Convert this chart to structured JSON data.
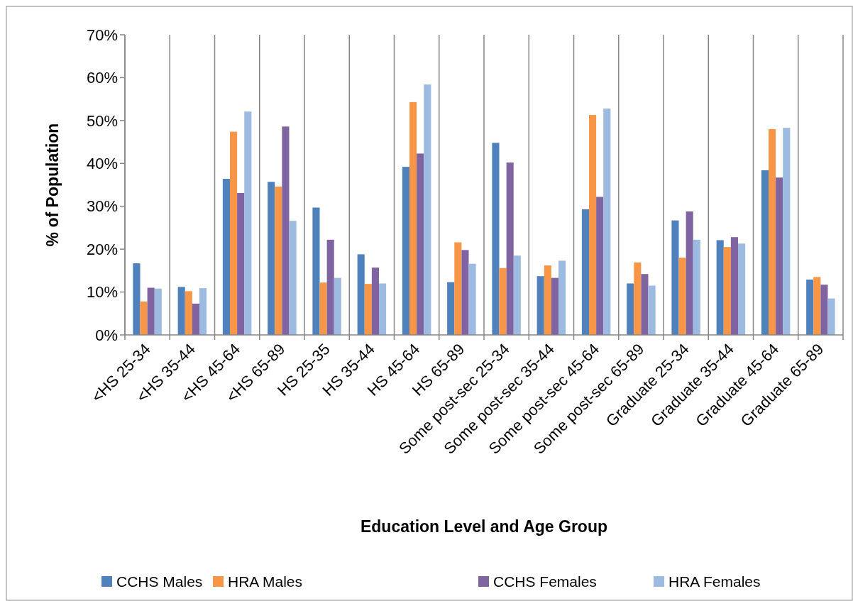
{
  "chart_data": {
    "type": "bar",
    "xlabel": "Education Level and Age Group",
    "ylabel": "% of Population",
    "categories": [
      "<HS 25-34",
      "<HS 35-44",
      "<HS 45-64",
      "<HS 65-89",
      "HS 25-35",
      "HS 35-44",
      "HS 45-64",
      "HS 65-89",
      "Some post-sec 25-34",
      "Some post-sec 35-44",
      "Some post-sec 45-64",
      "Some post-sec 65-89",
      "Graduate 25-34",
      "Graduate 35-44",
      "Graduate 45-64",
      "Graduate 65-89"
    ],
    "series": [
      {
        "name": "CCHS Males",
        "color": "#4f81bd",
        "values": [
          16.7,
          11.2,
          36.4,
          35.7,
          29.7,
          18.8,
          39.2,
          12.3,
          44.8,
          13.7,
          29.3,
          12.0,
          26.7,
          22.1,
          38.4,
          12.9
        ]
      },
      {
        "name": "HRA Males",
        "color": "#f79646",
        "values": [
          7.8,
          10.2,
          47.4,
          34.6,
          12.2,
          11.9,
          54.3,
          21.6,
          15.6,
          16.2,
          51.3,
          16.9,
          18.0,
          20.5,
          48.0,
          13.5
        ]
      },
      {
        "name": "CCHS Females",
        "color": "#8064a2",
        "values": [
          11.0,
          7.3,
          33.1,
          48.6,
          22.2,
          15.7,
          42.3,
          19.8,
          40.2,
          13.3,
          32.2,
          14.2,
          28.8,
          22.8,
          36.7,
          11.7
        ]
      },
      {
        "name": "HRA Females",
        "color": "#9dbbe0",
        "values": [
          10.8,
          10.9,
          52.1,
          26.6,
          13.3,
          12.0,
          58.4,
          16.6,
          18.5,
          17.3,
          52.8,
          11.5,
          22.2,
          21.3,
          48.3,
          8.5
        ]
      }
    ],
    "ylim": [
      0,
      70
    ],
    "yticks": [
      {
        "value": 0,
        "label": "0%"
      },
      {
        "value": 10,
        "label": "10%"
      },
      {
        "value": 20,
        "label": "20%"
      },
      {
        "value": 30,
        "label": "30%"
      },
      {
        "value": 40,
        "label": "40%"
      },
      {
        "value": 50,
        "label": "50%"
      },
      {
        "value": 60,
        "label": "60%"
      },
      {
        "value": 70,
        "label": "70%"
      }
    ],
    "grid": "x",
    "legend": "bottom"
  }
}
